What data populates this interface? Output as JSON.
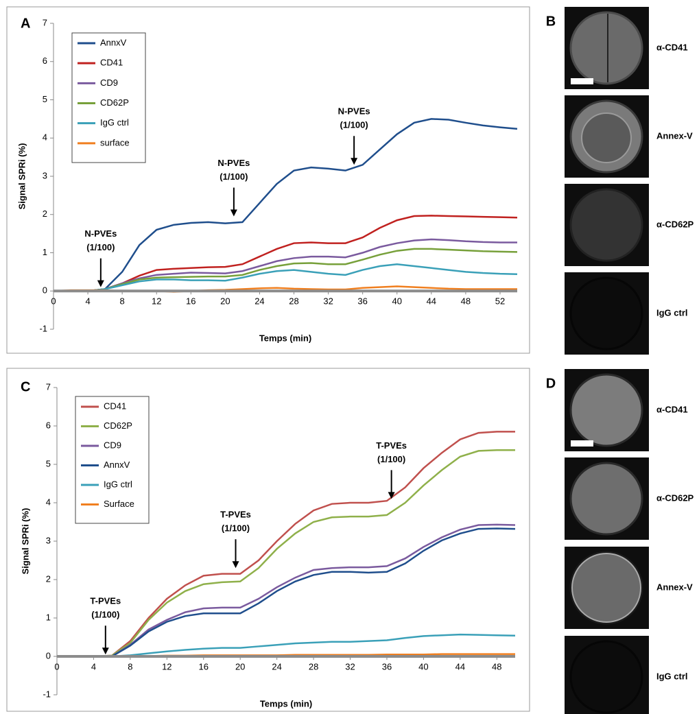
{
  "chart_data": [
    {
      "type": "line",
      "panel_label": "A",
      "y_label": "Signal SPRi (%)",
      "x_label": "Temps (min)",
      "x": [
        0,
        2,
        4,
        6,
        8,
        10,
        12,
        14,
        16,
        18,
        20,
        22,
        24,
        26,
        28,
        30,
        32,
        34,
        36,
        38,
        40,
        42,
        44,
        46,
        48,
        50,
        52,
        54
      ],
      "xlim": [
        0,
        54
      ],
      "xticks": [
        0,
        4,
        8,
        12,
        16,
        20,
        24,
        28,
        32,
        36,
        40,
        44,
        48,
        52
      ],
      "ylim": [
        -1,
        7
      ],
      "yticks": [
        -1,
        0,
        1,
        2,
        3,
        4,
        5,
        6,
        7
      ],
      "series": [
        {
          "name": "AnnxV",
          "color": "#1f4e8c",
          "values": [
            0,
            0,
            0,
            0.05,
            0.5,
            1.2,
            1.6,
            1.73,
            1.78,
            1.8,
            1.77,
            1.8,
            2.3,
            2.8,
            3.15,
            3.23,
            3.2,
            3.15,
            3.3,
            3.7,
            4.1,
            4.4,
            4.5,
            4.48,
            4.4,
            4.33,
            4.28,
            4.24
          ]
        },
        {
          "name": "CD41",
          "color": "#c0211f",
          "values": [
            0,
            0,
            0,
            0.05,
            0.2,
            0.4,
            0.55,
            0.58,
            0.6,
            0.62,
            0.63,
            0.7,
            0.9,
            1.1,
            1.25,
            1.27,
            1.25,
            1.25,
            1.4,
            1.65,
            1.85,
            1.96,
            1.97,
            1.96,
            1.95,
            1.94,
            1.93,
            1.92
          ]
        },
        {
          "name": "CD9",
          "color": "#7a5a9e",
          "values": [
            0,
            0,
            0,
            0.05,
            0.2,
            0.33,
            0.42,
            0.45,
            0.48,
            0.47,
            0.46,
            0.52,
            0.65,
            0.78,
            0.86,
            0.9,
            0.9,
            0.88,
            1.0,
            1.15,
            1.25,
            1.32,
            1.35,
            1.33,
            1.3,
            1.28,
            1.27,
            1.27
          ]
        },
        {
          "name": "CD62P",
          "color": "#77a03a",
          "values": [
            0,
            0,
            0,
            0.05,
            0.18,
            0.3,
            0.35,
            0.36,
            0.37,
            0.38,
            0.38,
            0.42,
            0.55,
            0.65,
            0.72,
            0.73,
            0.7,
            0.7,
            0.82,
            0.95,
            1.05,
            1.1,
            1.1,
            1.08,
            1.06,
            1.04,
            1.03,
            1.02
          ]
        },
        {
          "name": "IgG ctrl",
          "color": "#3aa0b8",
          "values": [
            0,
            0,
            0,
            0.05,
            0.15,
            0.25,
            0.3,
            0.3,
            0.28,
            0.28,
            0.27,
            0.35,
            0.45,
            0.52,
            0.55,
            0.5,
            0.45,
            0.42,
            0.55,
            0.65,
            0.7,
            0.65,
            0.6,
            0.55,
            0.5,
            0.47,
            0.45,
            0.44
          ]
        },
        {
          "name": "surface",
          "color": "#f07f1f",
          "values": [
            0,
            0.02,
            0.02,
            0.02,
            0,
            0,
            0,
            -0.02,
            0,
            0.02,
            0.03,
            0.05,
            0.07,
            0.08,
            0.06,
            0.05,
            0.04,
            0.04,
            0.08,
            0.1,
            0.12,
            0.1,
            0.08,
            0.06,
            0.05,
            0.05,
            0.05,
            0.05
          ]
        }
      ],
      "annotations": [
        {
          "lines": [
            "N-PVEs",
            "(1/100)"
          ],
          "x": 5.5,
          "y": 0.1
        },
        {
          "lines": [
            "N-PVEs",
            "(1/100)"
          ],
          "x": 21,
          "y": 1.95
        },
        {
          "lines": [
            "N-PVEs",
            "(1/100)"
          ],
          "x": 35,
          "y": 3.3
        }
      ]
    },
    {
      "type": "line",
      "panel_label": "C",
      "y_label": "Signal SPRi (%)",
      "x_label": "Temps (min)",
      "x": [
        0,
        2,
        4,
        6,
        8,
        10,
        12,
        14,
        16,
        18,
        20,
        22,
        24,
        26,
        28,
        30,
        32,
        34,
        36,
        38,
        40,
        42,
        44,
        46,
        48,
        50
      ],
      "xlim": [
        0,
        50
      ],
      "xticks": [
        0,
        4,
        8,
        12,
        16,
        20,
        24,
        28,
        32,
        36,
        40,
        44,
        48
      ],
      "ylim": [
        -1,
        7
      ],
      "yticks": [
        -1,
        0,
        1,
        2,
        3,
        4,
        5,
        6,
        7
      ],
      "series": [
        {
          "name": "CD41",
          "color": "#c0504d",
          "values": [
            0,
            0,
            0,
            0.02,
            0.4,
            1.0,
            1.5,
            1.85,
            2.1,
            2.15,
            2.15,
            2.5,
            3.0,
            3.45,
            3.8,
            3.97,
            4.0,
            4.0,
            4.05,
            4.4,
            4.9,
            5.3,
            5.65,
            5.82,
            5.85,
            5.85
          ]
        },
        {
          "name": "CD62P",
          "color": "#8fb04a",
          "values": [
            0,
            0,
            0,
            0.02,
            0.35,
            0.95,
            1.4,
            1.7,
            1.88,
            1.93,
            1.95,
            2.3,
            2.8,
            3.2,
            3.5,
            3.62,
            3.64,
            3.64,
            3.68,
            4.0,
            4.45,
            4.85,
            5.2,
            5.35,
            5.37,
            5.37
          ]
        },
        {
          "name": "CD9",
          "color": "#7a5a9e",
          "values": [
            0,
            0,
            0,
            0,
            0.3,
            0.7,
            0.95,
            1.15,
            1.25,
            1.27,
            1.27,
            1.5,
            1.8,
            2.05,
            2.25,
            2.3,
            2.32,
            2.32,
            2.35,
            2.55,
            2.85,
            3.1,
            3.3,
            3.42,
            3.43,
            3.42
          ]
        },
        {
          "name": "AnnxV",
          "color": "#1f4e8c",
          "values": [
            0,
            0,
            0,
            0,
            0.28,
            0.65,
            0.9,
            1.05,
            1.12,
            1.12,
            1.12,
            1.38,
            1.7,
            1.95,
            2.12,
            2.2,
            2.2,
            2.18,
            2.2,
            2.42,
            2.75,
            3.02,
            3.2,
            3.32,
            3.33,
            3.32
          ]
        },
        {
          "name": "IgG ctrl",
          "color": "#3aa0b8",
          "values": [
            0,
            0,
            0,
            0,
            0.03,
            0.08,
            0.13,
            0.17,
            0.2,
            0.22,
            0.22,
            0.26,
            0.3,
            0.34,
            0.36,
            0.38,
            0.38,
            0.4,
            0.42,
            0.48,
            0.53,
            0.55,
            0.57,
            0.56,
            0.55,
            0.54
          ]
        },
        {
          "name": "Surface",
          "color": "#f07f1f",
          "values": [
            0,
            0,
            0,
            0,
            0,
            0.01,
            0.02,
            0.02,
            0.03,
            0.03,
            0.03,
            0.03,
            0.03,
            0.04,
            0.04,
            0.04,
            0.04,
            0.04,
            0.05,
            0.05,
            0.05,
            0.06,
            0.06,
            0.06,
            0.06,
            0.06
          ]
        }
      ],
      "annotations": [
        {
          "lines": [
            "T-PVEs",
            "(1/100)"
          ],
          "x": 5.3,
          "y": 0.05
        },
        {
          "lines": [
            "T-PVEs",
            "(1/100)"
          ],
          "x": 19.5,
          "y": 2.3
        },
        {
          "lines": [
            "T-PVEs",
            "(1/100)"
          ],
          "x": 36.5,
          "y": 4.1
        }
      ]
    }
  ],
  "image_panels": [
    {
      "panel_label": "B",
      "captions": [
        "α-CD41",
        "Annex-V",
        "α-CD62P",
        "IgG ctrl"
      ]
    },
    {
      "panel_label": "D",
      "captions": [
        "α-CD41",
        "α-CD62P",
        "Annex-V",
        "IgG ctrl"
      ]
    }
  ]
}
